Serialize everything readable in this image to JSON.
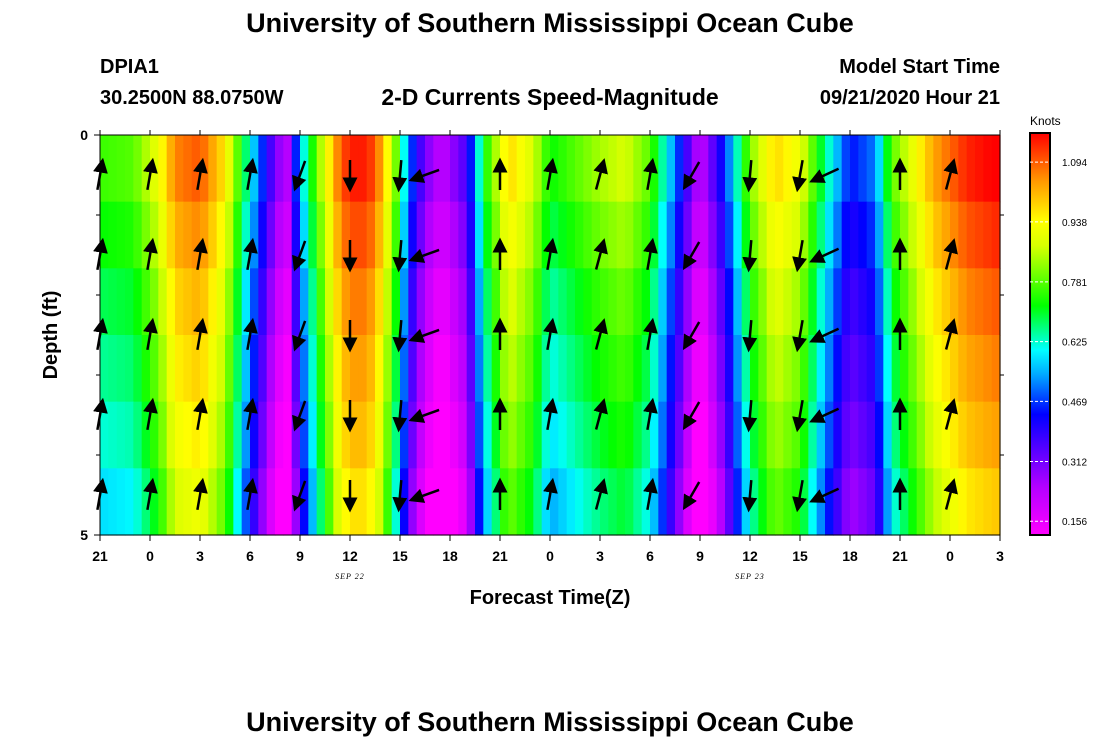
{
  "header": {
    "title": "University of Southern Mississippi Ocean Cube",
    "station": "DPIA1",
    "coords": "30.2500N 88.0750W",
    "subtitle": "2-D Currents Speed-Magnitude",
    "model_start_label": "Model Start Time",
    "model_start_value": "09/21/2020 Hour 21"
  },
  "footer": {
    "title": "University of Southern Mississippi Ocean Cube"
  },
  "chart_data": {
    "type": "heatmap",
    "title": "2-D Currents Speed-Magnitude",
    "xlabel": "Forecast Time(Z)",
    "ylabel": "Depth (ft)",
    "x_ticks": [
      "21",
      "0",
      "3",
      "6",
      "9",
      "12",
      "15",
      "18",
      "21",
      "0",
      "3",
      "6",
      "9",
      "12",
      "15",
      "18",
      "21",
      "0",
      "3"
    ],
    "x_tick_hours": [
      0,
      3,
      6,
      9,
      12,
      15,
      18,
      21,
      24,
      27,
      30,
      33,
      36,
      39,
      42,
      45,
      48,
      51,
      54
    ],
    "date_labels": [
      {
        "text": "SEP 22",
        "hour": 15
      },
      {
        "text": "SEP 23",
        "hour": 39
      }
    ],
    "xlim_hours": [
      0,
      54
    ],
    "y_ticks": [
      "0",
      "5"
    ],
    "ylim": [
      0,
      5
    ],
    "y_reversed": true,
    "colorbar": {
      "label": "Knots",
      "ticks": [
        "1.094",
        "0.938",
        "0.781",
        "0.625",
        "0.469",
        "0.312",
        "0.156"
      ],
      "range": [
        0.12,
        1.17
      ]
    },
    "speed_profile": [
      {
        "h": 0,
        "v": 0.7
      },
      {
        "h": 2,
        "v": 0.72
      },
      {
        "h": 3.5,
        "v": 0.85
      },
      {
        "h": 4.5,
        "v": 1.0
      },
      {
        "h": 6,
        "v": 1.04
      },
      {
        "h": 7.5,
        "v": 0.9
      },
      {
        "h": 9,
        "v": 0.55
      },
      {
        "h": 10.5,
        "v": 0.25
      },
      {
        "h": 11.2,
        "v": 0.16
      },
      {
        "h": 12,
        "v": 0.5
      },
      {
        "h": 13.3,
        "v": 0.8
      },
      {
        "h": 14.5,
        "v": 1.05
      },
      {
        "h": 15.5,
        "v": 1.1
      },
      {
        "h": 16.5,
        "v": 1.05
      },
      {
        "h": 17.6,
        "v": 0.8
      },
      {
        "h": 18.5,
        "v": 0.45
      },
      {
        "h": 19.5,
        "v": 0.25
      },
      {
        "h": 20.5,
        "v": 0.16
      },
      {
        "h": 22,
        "v": 0.3
      },
      {
        "h": 23,
        "v": 0.65
      },
      {
        "h": 24.5,
        "v": 0.92
      },
      {
        "h": 26,
        "v": 0.82
      },
      {
        "h": 27,
        "v": 0.66
      },
      {
        "h": 28.5,
        "v": 0.72
      },
      {
        "h": 30,
        "v": 0.78
      },
      {
        "h": 31.5,
        "v": 0.82
      },
      {
        "h": 33,
        "v": 0.72
      },
      {
        "h": 34.5,
        "v": 0.45
      },
      {
        "h": 36,
        "v": 0.15
      },
      {
        "h": 37.5,
        "v": 0.4
      },
      {
        "h": 39,
        "v": 0.75
      },
      {
        "h": 40.5,
        "v": 0.92
      },
      {
        "h": 42,
        "v": 0.85
      },
      {
        "h": 43.5,
        "v": 0.6
      },
      {
        "h": 45,
        "v": 0.38
      },
      {
        "h": 46.5,
        "v": 0.45
      },
      {
        "h": 47.5,
        "v": 0.72
      },
      {
        "h": 48.5,
        "v": 0.82
      },
      {
        "h": 50,
        "v": 0.97
      },
      {
        "h": 52,
        "v": 1.08
      },
      {
        "h": 54,
        "v": 1.12
      }
    ],
    "depth_adjust": [
      0.06,
      0.02,
      -0.02,
      -0.05,
      -0.08,
      -0.12
    ],
    "vectors": {
      "columns": [
        {
          "h": 0,
          "dir": 10
        },
        {
          "h": 3,
          "dir": 10
        },
        {
          "h": 6,
          "dir": 10
        },
        {
          "h": 9,
          "dir": 10
        },
        {
          "h": 12,
          "dir": 200
        },
        {
          "h": 15,
          "dir": 180
        },
        {
          "h": 18,
          "dir": 185
        },
        {
          "h": 19.5,
          "dir": 250
        },
        {
          "h": 24,
          "dir": 0
        },
        {
          "h": 27,
          "dir": 10
        },
        {
          "h": 30,
          "dir": 15
        },
        {
          "h": 33,
          "dir": 10
        },
        {
          "h": 35.5,
          "dir": 210
        },
        {
          "h": 39,
          "dir": 185
        },
        {
          "h": 42,
          "dir": 190
        },
        {
          "h": 43.5,
          "dir": 245
        },
        {
          "h": 48,
          "dir": 0
        },
        {
          "h": 51,
          "dir": 15
        }
      ],
      "depths": [
        0.5,
        1.5,
        2.5,
        3.5,
        4.5
      ]
    }
  }
}
